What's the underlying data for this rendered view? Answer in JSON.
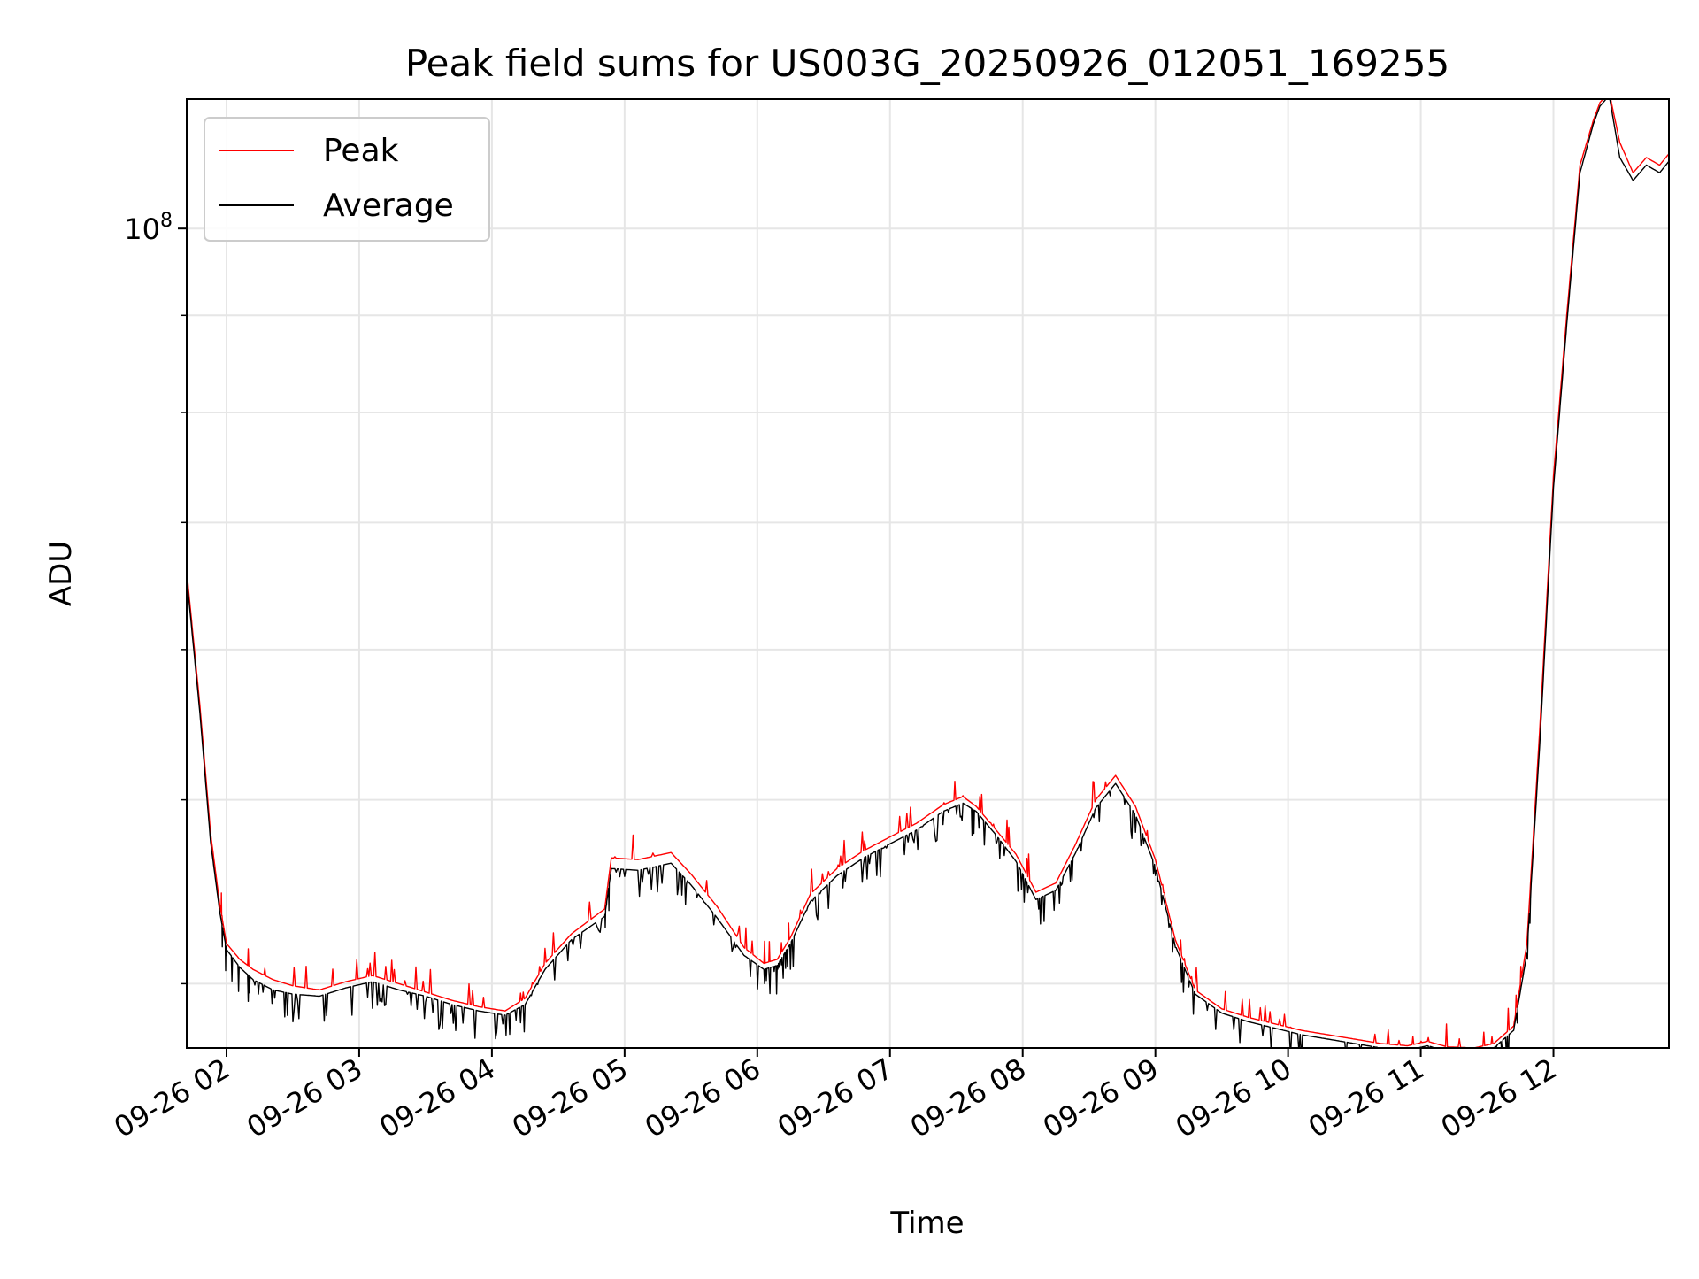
{
  "chart_data": {
    "type": "line",
    "title": "Peak field sums for US003G_20250926_012051_169255",
    "xlabel": "Time",
    "ylabel": "ADU",
    "yscale": "log",
    "ylim": [
      37000000,
      117000000
    ],
    "xlim_hours": [
      1.7,
      12.87
    ],
    "grid": true,
    "legend_position": "upper left",
    "x_ticks": [
      {
        "label": "09-26 02",
        "value": 2
      },
      {
        "label": "09-26 03",
        "value": 3
      },
      {
        "label": "09-26 04",
        "value": 4
      },
      {
        "label": "09-26 05",
        "value": 5
      },
      {
        "label": "09-26 06",
        "value": 6
      },
      {
        "label": "09-26 07",
        "value": 7
      },
      {
        "label": "09-26 08",
        "value": 8
      },
      {
        "label": "09-26 09",
        "value": 9
      },
      {
        "label": "09-26 10",
        "value": 10
      },
      {
        "label": "09-26 11",
        "value": 11
      },
      {
        "label": "09-26 12",
        "value": 12
      }
    ],
    "y_major_ticks": [
      {
        "label_base": "10",
        "label_exp": "8",
        "value": 100000000
      }
    ],
    "y_minor_ticks": [
      40000000,
      50000000,
      60000000,
      70000000,
      80000000,
      90000000
    ],
    "series": [
      {
        "name": "Peak",
        "color": "#ff0000",
        "x": [
          1.7,
          1.8,
          1.88,
          1.95,
          2.0,
          2.1,
          2.2,
          2.35,
          2.5,
          2.7,
          2.9,
          3.1,
          3.3,
          3.5,
          3.7,
          3.9,
          4.1,
          4.25,
          4.4,
          4.6,
          4.85,
          4.9,
          5.1,
          5.35,
          5.5,
          5.7,
          5.9,
          6.05,
          6.15,
          6.25,
          6.4,
          6.6,
          6.8,
          7.0,
          7.2,
          7.4,
          7.55,
          7.65,
          7.8,
          7.95,
          8.1,
          8.25,
          8.4,
          8.55,
          8.7,
          8.85,
          9.0,
          9.15,
          9.3,
          9.5,
          9.7,
          9.9,
          10.1,
          10.3,
          10.5,
          10.7,
          10.9,
          11.05,
          11.2,
          11.4,
          11.55,
          11.7,
          11.8,
          11.9,
          12.0,
          12.1,
          12.2,
          12.3,
          12.35,
          12.42,
          12.5,
          12.6,
          12.7,
          12.8,
          12.87
        ],
        "values": [
          66000000,
          56000000,
          48000000,
          44000000,
          42000000,
          41200000,
          40700000,
          40200000,
          39900000,
          39700000,
          40100000,
          40400000,
          40000000,
          39600000,
          39200000,
          38900000,
          38700000,
          39300000,
          41000000,
          42500000,
          43800000,
          46600000,
          46500000,
          46900000,
          45700000,
          43900000,
          41800000,
          41000000,
          41200000,
          42300000,
          44600000,
          46000000,
          47000000,
          47800000,
          48600000,
          49700000,
          50200000,
          49600000,
          48200000,
          46800000,
          44700000,
          45200000,
          47400000,
          50000000,
          51500000,
          49600000,
          46500000,
          42200000,
          39700000,
          38800000,
          38400000,
          38100000,
          37800000,
          37600000,
          37400000,
          37200000,
          37100000,
          37300000,
          37050000,
          37000000,
          37200000,
          38000000,
          42000000,
          55000000,
          74000000,
          90000000,
          108000000,
          114000000,
          116500000,
          118000000,
          111000000,
          107000000,
          109000000,
          108000000,
          109500000
        ]
      },
      {
        "name": "Average",
        "color": "#000000",
        "x": [
          1.7,
          1.8,
          1.88,
          1.95,
          2.0,
          2.1,
          2.2,
          2.35,
          2.5,
          2.7,
          2.9,
          3.1,
          3.3,
          3.5,
          3.7,
          3.9,
          4.1,
          4.25,
          4.4,
          4.6,
          4.85,
          4.9,
          5.1,
          5.35,
          5.5,
          5.7,
          5.9,
          6.05,
          6.15,
          6.25,
          6.4,
          6.6,
          6.8,
          7.0,
          7.2,
          7.4,
          7.55,
          7.65,
          7.8,
          7.95,
          8.1,
          8.25,
          8.4,
          8.55,
          8.7,
          8.85,
          9.0,
          9.15,
          9.3,
          9.5,
          9.7,
          9.9,
          10.1,
          10.3,
          10.5,
          10.7,
          10.9,
          11.05,
          11.2,
          11.4,
          11.55,
          11.7,
          11.8,
          11.9,
          12.0,
          12.1,
          12.2,
          12.3,
          12.35,
          12.42,
          12.5,
          12.6,
          12.7,
          12.8,
          12.87
        ],
        "values": [
          65500000,
          55500000,
          47500000,
          43600000,
          41700000,
          40800000,
          40200000,
          39700000,
          39500000,
          39400000,
          39800000,
          40100000,
          39700000,
          39400000,
          39000000,
          38700000,
          38500000,
          39000000,
          40700000,
          42200000,
          43400000,
          46000000,
          45900000,
          46300000,
          45100000,
          43300000,
          41400000,
          40700000,
          40900000,
          42000000,
          44200000,
          45600000,
          46600000,
          47400000,
          48200000,
          49300000,
          49800000,
          49300000,
          47900000,
          46400000,
          44300000,
          44800000,
          46900000,
          49500000,
          51000000,
          49100000,
          46100000,
          41900000,
          39500000,
          38600000,
          38200000,
          37900000,
          37600000,
          37400000,
          37200000,
          37000000,
          36900000,
          37100000,
          36850000,
          36800000,
          37000000,
          37800000,
          41500000,
          54000000,
          73000000,
          89000000,
          107000000,
          113500000,
          116000000,
          117500000,
          109000000,
          106000000,
          108000000,
          107000000,
          108500000
        ]
      }
    ]
  }
}
